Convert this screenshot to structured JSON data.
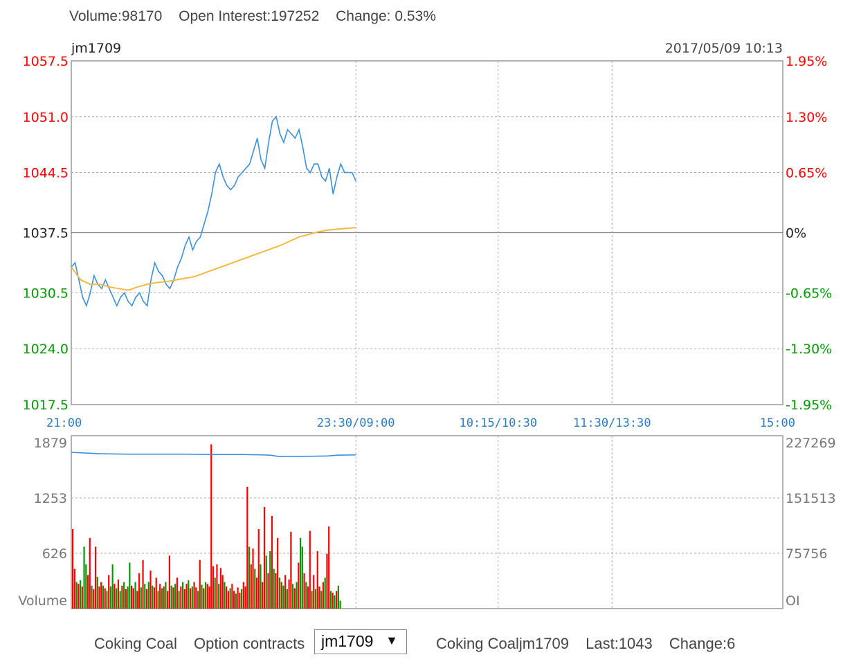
{
  "top_stats": {
    "volume": "Volume:98170",
    "open_interest": "Open Interest:197252",
    "change": "Change: 0.53%"
  },
  "footer": {
    "product_label": "Coking Coal",
    "option_label": "Option contracts",
    "selected_contract": "jm1709",
    "info_name": "Coking Coaljm1709",
    "info_last": "Last:1043",
    "info_change": "Change:6"
  },
  "colors": {
    "up": "#ff0000",
    "down": "#009900",
    "neutral": "#222222",
    "price_line": "#3b8fdc",
    "avg_line": "#f5b942",
    "axis_time": "#2b7ec5",
    "grid": "#999999"
  },
  "chart_data": {
    "type": "line",
    "symbol": "jm1709",
    "datetime": "2017/05/09 10:13",
    "price_panel": {
      "y_ticks": [
        "1057.5",
        "1051.0",
        "1044.5",
        "1037.5",
        "1030.5",
        "1024.0",
        "1017.5"
      ],
      "y_tick_values": [
        1057.5,
        1051.0,
        1044.5,
        1037.5,
        1030.5,
        1024.0,
        1017.5
      ],
      "right_ticks": [
        "1.95%",
        "1.30%",
        "0.65%",
        "0%",
        "-0.65%",
        "-1.30%",
        "-1.95%"
      ],
      "ylim": [
        1017.5,
        1057.5
      ],
      "prev_close": 1037.5,
      "grid": true,
      "series": [
        {
          "key": "price",
          "x": [
            0,
            2,
            4,
            6,
            8,
            10,
            12,
            14,
            16,
            18,
            20,
            22,
            24,
            26,
            28,
            30,
            32,
            34,
            36,
            38,
            40,
            42,
            44,
            46,
            48,
            50,
            52,
            54,
            56,
            58,
            60,
            62,
            64,
            66,
            68,
            70,
            72,
            74,
            76,
            78,
            80,
            82,
            84,
            86,
            88,
            90,
            92,
            94,
            96,
            98,
            100,
            102,
            104,
            106,
            108,
            110,
            112,
            114,
            116,
            118,
            120,
            122,
            124,
            126,
            128,
            130,
            132,
            134,
            136,
            138,
            140,
            142,
            144,
            146,
            148,
            150
          ],
          "values": [
            1033.5,
            1034.0,
            1032.0,
            1030.0,
            1029.0,
            1030.5,
            1032.5,
            1031.5,
            1031.0,
            1032.0,
            1031.0,
            1030.0,
            1029.0,
            1030.0,
            1030.5,
            1029.5,
            1029.0,
            1030.0,
            1030.5,
            1029.5,
            1029.0,
            1032.0,
            1034.0,
            1033.0,
            1032.5,
            1031.5,
            1031.0,
            1032.0,
            1033.5,
            1034.5,
            1036.0,
            1037.0,
            1035.5,
            1036.5,
            1037.0,
            1038.5,
            1040.0,
            1042.0,
            1044.5,
            1045.5,
            1044.0,
            1043.0,
            1042.5,
            1043.0,
            1044.0,
            1044.5,
            1045.0,
            1045.5,
            1047.0,
            1048.5,
            1046.0,
            1045.0,
            1048.0,
            1050.5,
            1051.0,
            1049.0,
            1048.0,
            1049.5,
            1049.0,
            1048.5,
            1049.5,
            1047.5,
            1045.0,
            1044.5,
            1045.5,
            1045.5,
            1044.0,
            1043.5,
            1045.0,
            1042.0,
            1044.0,
            1045.5,
            1044.5,
            1044.5,
            1044.5,
            1043.5
          ]
        },
        {
          "key": "average",
          "x": [
            0,
            5,
            10,
            15,
            20,
            25,
            30,
            35,
            40,
            45,
            50,
            55,
            60,
            65,
            70,
            75,
            80,
            85,
            90,
            95,
            100,
            105,
            110,
            115,
            120,
            125,
            130,
            135,
            140,
            145,
            150
          ],
          "values": [
            1033.5,
            1032.0,
            1031.5,
            1031.5,
            1031.2,
            1031.0,
            1030.8,
            1031.2,
            1031.5,
            1031.7,
            1031.8,
            1032.0,
            1032.2,
            1032.4,
            1032.8,
            1033.2,
            1033.6,
            1034.0,
            1034.4,
            1034.8,
            1035.2,
            1035.6,
            1036.0,
            1036.5,
            1037.0,
            1037.3,
            1037.6,
            1037.8,
            1037.9,
            1038.0,
            1038.1
          ]
        }
      ]
    },
    "volume_panel": {
      "y_ticks": [
        "1879",
        "1253",
        "626"
      ],
      "y_label": "Volume",
      "right_ticks": [
        "227269",
        "151513",
        "75756"
      ],
      "right_label": "OI",
      "ylim": [
        0,
        1879
      ],
      "oi_ylim": [
        0,
        227269
      ],
      "oi_series": {
        "x": [
          0,
          15,
          30,
          45,
          60,
          75,
          90,
          100,
          105,
          110,
          115,
          125,
          135,
          140,
          150
        ],
        "values": [
          214000,
          212000,
          211500,
          211500,
          211500,
          211000,
          211000,
          210500,
          210000,
          208000,
          208500,
          208500,
          209000,
          210000,
          210500
        ]
      },
      "volume_bars": [
        {
          "t": 0,
          "v": 900,
          "up": true
        },
        {
          "t": 1,
          "v": 450,
          "up": true
        },
        {
          "t": 2,
          "v": 300,
          "up": false
        },
        {
          "t": 3,
          "v": 280,
          "up": true
        },
        {
          "t": 4,
          "v": 320,
          "up": false
        },
        {
          "t": 5,
          "v": 250,
          "up": true
        },
        {
          "t": 6,
          "v": 700,
          "up": false
        },
        {
          "t": 7,
          "v": 500,
          "up": false
        },
        {
          "t": 8,
          "v": 380,
          "up": true
        },
        {
          "t": 9,
          "v": 800,
          "up": true
        },
        {
          "t": 10,
          "v": 260,
          "up": false
        },
        {
          "t": 11,
          "v": 220,
          "up": true
        },
        {
          "t": 12,
          "v": 700,
          "up": true
        },
        {
          "t": 13,
          "v": 360,
          "up": false
        },
        {
          "t": 14,
          "v": 250,
          "up": true
        },
        {
          "t": 15,
          "v": 300,
          "up": true
        },
        {
          "t": 16,
          "v": 260,
          "up": false
        },
        {
          "t": 17,
          "v": 230,
          "up": true
        },
        {
          "t": 18,
          "v": 200,
          "up": false
        },
        {
          "t": 19,
          "v": 380,
          "up": true
        },
        {
          "t": 20,
          "v": 250,
          "up": false
        },
        {
          "t": 21,
          "v": 500,
          "up": false
        },
        {
          "t": 22,
          "v": 280,
          "up": true
        },
        {
          "t": 23,
          "v": 230,
          "up": false
        },
        {
          "t": 24,
          "v": 330,
          "up": true
        },
        {
          "t": 25,
          "v": 200,
          "up": false
        },
        {
          "t": 26,
          "v": 260,
          "up": true
        },
        {
          "t": 27,
          "v": 300,
          "up": false
        },
        {
          "t": 28,
          "v": 220,
          "up": true
        },
        {
          "t": 29,
          "v": 250,
          "up": false
        },
        {
          "t": 30,
          "v": 520,
          "up": false
        },
        {
          "t": 31,
          "v": 260,
          "up": true
        },
        {
          "t": 32,
          "v": 230,
          "up": true
        },
        {
          "t": 33,
          "v": 300,
          "up": false
        },
        {
          "t": 34,
          "v": 200,
          "up": true
        },
        {
          "t": 35,
          "v": 400,
          "up": true
        },
        {
          "t": 36,
          "v": 240,
          "up": false
        },
        {
          "t": 37,
          "v": 550,
          "up": true
        },
        {
          "t": 38,
          "v": 280,
          "up": false
        },
        {
          "t": 39,
          "v": 220,
          "up": true
        },
        {
          "t": 40,
          "v": 300,
          "up": false
        },
        {
          "t": 41,
          "v": 430,
          "up": true
        },
        {
          "t": 42,
          "v": 260,
          "up": false
        },
        {
          "t": 43,
          "v": 240,
          "up": true
        },
        {
          "t": 44,
          "v": 350,
          "up": true
        },
        {
          "t": 45,
          "v": 200,
          "up": false
        },
        {
          "t": 46,
          "v": 280,
          "up": true
        },
        {
          "t": 47,
          "v": 230,
          "up": false
        },
        {
          "t": 48,
          "v": 250,
          "up": true
        },
        {
          "t": 49,
          "v": 300,
          "up": false
        },
        {
          "t": 50,
          "v": 200,
          "up": true
        },
        {
          "t": 51,
          "v": 600,
          "up": true
        },
        {
          "t": 52,
          "v": 260,
          "up": false
        },
        {
          "t": 53,
          "v": 240,
          "up": true
        },
        {
          "t": 54,
          "v": 280,
          "up": false
        },
        {
          "t": 55,
          "v": 350,
          "up": true
        },
        {
          "t": 56,
          "v": 200,
          "up": false
        },
        {
          "t": 57,
          "v": 250,
          "up": true
        },
        {
          "t": 58,
          "v": 300,
          "up": false
        },
        {
          "t": 59,
          "v": 220,
          "up": true
        },
        {
          "t": 60,
          "v": 280,
          "up": true
        },
        {
          "t": 61,
          "v": 320,
          "up": false
        },
        {
          "t": 62,
          "v": 230,
          "up": true
        },
        {
          "t": 63,
          "v": 250,
          "up": false
        },
        {
          "t": 64,
          "v": 300,
          "up": true
        },
        {
          "t": 65,
          "v": 240,
          "up": true
        },
        {
          "t": 66,
          "v": 200,
          "up": false
        },
        {
          "t": 67,
          "v": 550,
          "up": true
        },
        {
          "t": 68,
          "v": 270,
          "up": false
        },
        {
          "t": 69,
          "v": 230,
          "up": true
        },
        {
          "t": 70,
          "v": 300,
          "up": false
        },
        {
          "t": 71,
          "v": 280,
          "up": true
        },
        {
          "t": 72,
          "v": 250,
          "up": true
        },
        {
          "t": 73,
          "v": 1860,
          "up": true
        },
        {
          "t": 74,
          "v": 480,
          "up": true
        },
        {
          "t": 75,
          "v": 350,
          "up": false
        },
        {
          "t": 76,
          "v": 500,
          "up": true
        },
        {
          "t": 77,
          "v": 280,
          "up": false
        },
        {
          "t": 78,
          "v": 460,
          "up": true
        },
        {
          "t": 79,
          "v": 380,
          "up": true
        },
        {
          "t": 80,
          "v": 300,
          "up": false
        },
        {
          "t": 81,
          "v": 250,
          "up": true
        },
        {
          "t": 82,
          "v": 200,
          "up": true
        },
        {
          "t": 83,
          "v": 230,
          "up": false
        },
        {
          "t": 84,
          "v": 280,
          "up": true
        },
        {
          "t": 85,
          "v": 200,
          "up": true
        },
        {
          "t": 86,
          "v": 170,
          "up": false
        },
        {
          "t": 87,
          "v": 240,
          "up": true
        },
        {
          "t": 88,
          "v": 180,
          "up": true
        },
        {
          "t": 89,
          "v": 220,
          "up": false
        },
        {
          "t": 90,
          "v": 300,
          "up": true
        },
        {
          "t": 91,
          "v": 250,
          "up": true
        },
        {
          "t": 92,
          "v": 1380,
          "up": true
        },
        {
          "t": 93,
          "v": 700,
          "up": false
        },
        {
          "t": 94,
          "v": 500,
          "up": true
        },
        {
          "t": 95,
          "v": 680,
          "up": true
        },
        {
          "t": 96,
          "v": 450,
          "up": false
        },
        {
          "t": 97,
          "v": 350,
          "up": true
        },
        {
          "t": 98,
          "v": 900,
          "up": true
        },
        {
          "t": 99,
          "v": 500,
          "up": false
        },
        {
          "t": 100,
          "v": 300,
          "up": true
        },
        {
          "t": 101,
          "v": 1150,
          "up": true
        },
        {
          "t": 102,
          "v": 600,
          "up": false
        },
        {
          "t": 103,
          "v": 400,
          "up": true
        },
        {
          "t": 104,
          "v": 650,
          "up": false
        },
        {
          "t": 105,
          "v": 1050,
          "up": true
        },
        {
          "t": 106,
          "v": 450,
          "up": false
        },
        {
          "t": 107,
          "v": 400,
          "up": true
        },
        {
          "t": 108,
          "v": 800,
          "up": true
        },
        {
          "t": 109,
          "v": 350,
          "up": false
        },
        {
          "t": 110,
          "v": 300,
          "up": true
        },
        {
          "t": 111,
          "v": 260,
          "up": false
        },
        {
          "t": 112,
          "v": 380,
          "up": true
        },
        {
          "t": 113,
          "v": 220,
          "up": false
        },
        {
          "t": 114,
          "v": 330,
          "up": true
        },
        {
          "t": 115,
          "v": 870,
          "up": true
        },
        {
          "t": 116,
          "v": 280,
          "up": false
        },
        {
          "t": 117,
          "v": 230,
          "up": true
        },
        {
          "t": 118,
          "v": 300,
          "up": false
        },
        {
          "t": 119,
          "v": 520,
          "up": true
        },
        {
          "t": 120,
          "v": 800,
          "up": false
        },
        {
          "t": 121,
          "v": 700,
          "up": false
        },
        {
          "t": 122,
          "v": 400,
          "up": true
        },
        {
          "t": 123,
          "v": 300,
          "up": false
        },
        {
          "t": 124,
          "v": 250,
          "up": true
        },
        {
          "t": 125,
          "v": 880,
          "up": true
        },
        {
          "t": 126,
          "v": 200,
          "up": false
        },
        {
          "t": 127,
          "v": 380,
          "up": true
        },
        {
          "t": 128,
          "v": 220,
          "up": false
        },
        {
          "t": 129,
          "v": 650,
          "up": true
        },
        {
          "t": 130,
          "v": 250,
          "up": true
        },
        {
          "t": 131,
          "v": 200,
          "up": false
        },
        {
          "t": 132,
          "v": 300,
          "up": true
        },
        {
          "t": 133,
          "v": 350,
          "up": false
        },
        {
          "t": 134,
          "v": 620,
          "up": true
        },
        {
          "t": 135,
          "v": 930,
          "up": true
        },
        {
          "t": 136,
          "v": 200,
          "up": false
        },
        {
          "t": 137,
          "v": 180,
          "up": true
        },
        {
          "t": 138,
          "v": 150,
          "up": false
        },
        {
          "t": 139,
          "v": 200,
          "up": true
        },
        {
          "t": 140,
          "v": 260,
          "up": false
        },
        {
          "t": 141,
          "v": 90,
          "up": false
        }
      ]
    },
    "x_ticks": [
      "21:00",
      "23:30/09:00",
      "10:15/10:30",
      "11:30/13:30",
      "15:00"
    ],
    "x_tick_positions": [
      0,
      150,
      225,
      285,
      375
    ],
    "x_total": 375
  }
}
